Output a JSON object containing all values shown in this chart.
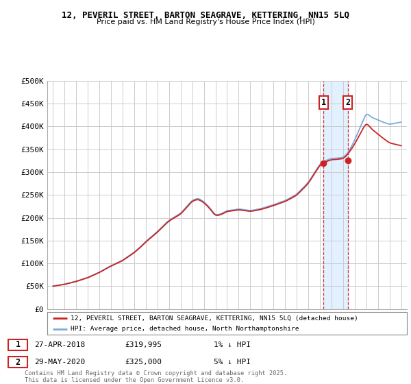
{
  "title": "12, PEVERIL STREET, BARTON SEAGRAVE, KETTERING, NN15 5LQ",
  "subtitle": "Price paid vs. HM Land Registry's House Price Index (HPI)",
  "ylim": [
    0,
    500000
  ],
  "yticks": [
    0,
    50000,
    100000,
    150000,
    200000,
    250000,
    300000,
    350000,
    400000,
    450000,
    500000
  ],
  "ytick_labels": [
    "£0",
    "£50K",
    "£100K",
    "£150K",
    "£200K",
    "£250K",
    "£300K",
    "£350K",
    "£400K",
    "£450K",
    "£500K"
  ],
  "hpi_color": "#7aabdc",
  "price_color": "#cc2222",
  "sale1_date": 2018.32,
  "sale1_price": 319995,
  "sale2_date": 2020.41,
  "sale2_price": 325000,
  "sale1_label": "27-APR-2018",
  "sale2_label": "29-MAY-2020",
  "sale1_text": "£319,995",
  "sale2_text": "£325,000",
  "sale1_note": "1% ↓ HPI",
  "sale2_note": "5% ↓ HPI",
  "legend_line1": "12, PEVERIL STREET, BARTON SEAGRAVE, KETTERING, NN15 5LQ (detached house)",
  "legend_line2": "HPI: Average price, detached house, North Northamptonshire",
  "footer": "Contains HM Land Registry data © Crown copyright and database right 2025.\nThis data is licensed under the Open Government Licence v3.0.",
  "background_color": "#ffffff",
  "grid_color": "#cccccc",
  "shaded_color": "#ddeeff",
  "xlim_left": 1994.5,
  "xlim_right": 2025.5,
  "fig_width": 6.0,
  "fig_height": 5.6,
  "dpi": 100
}
